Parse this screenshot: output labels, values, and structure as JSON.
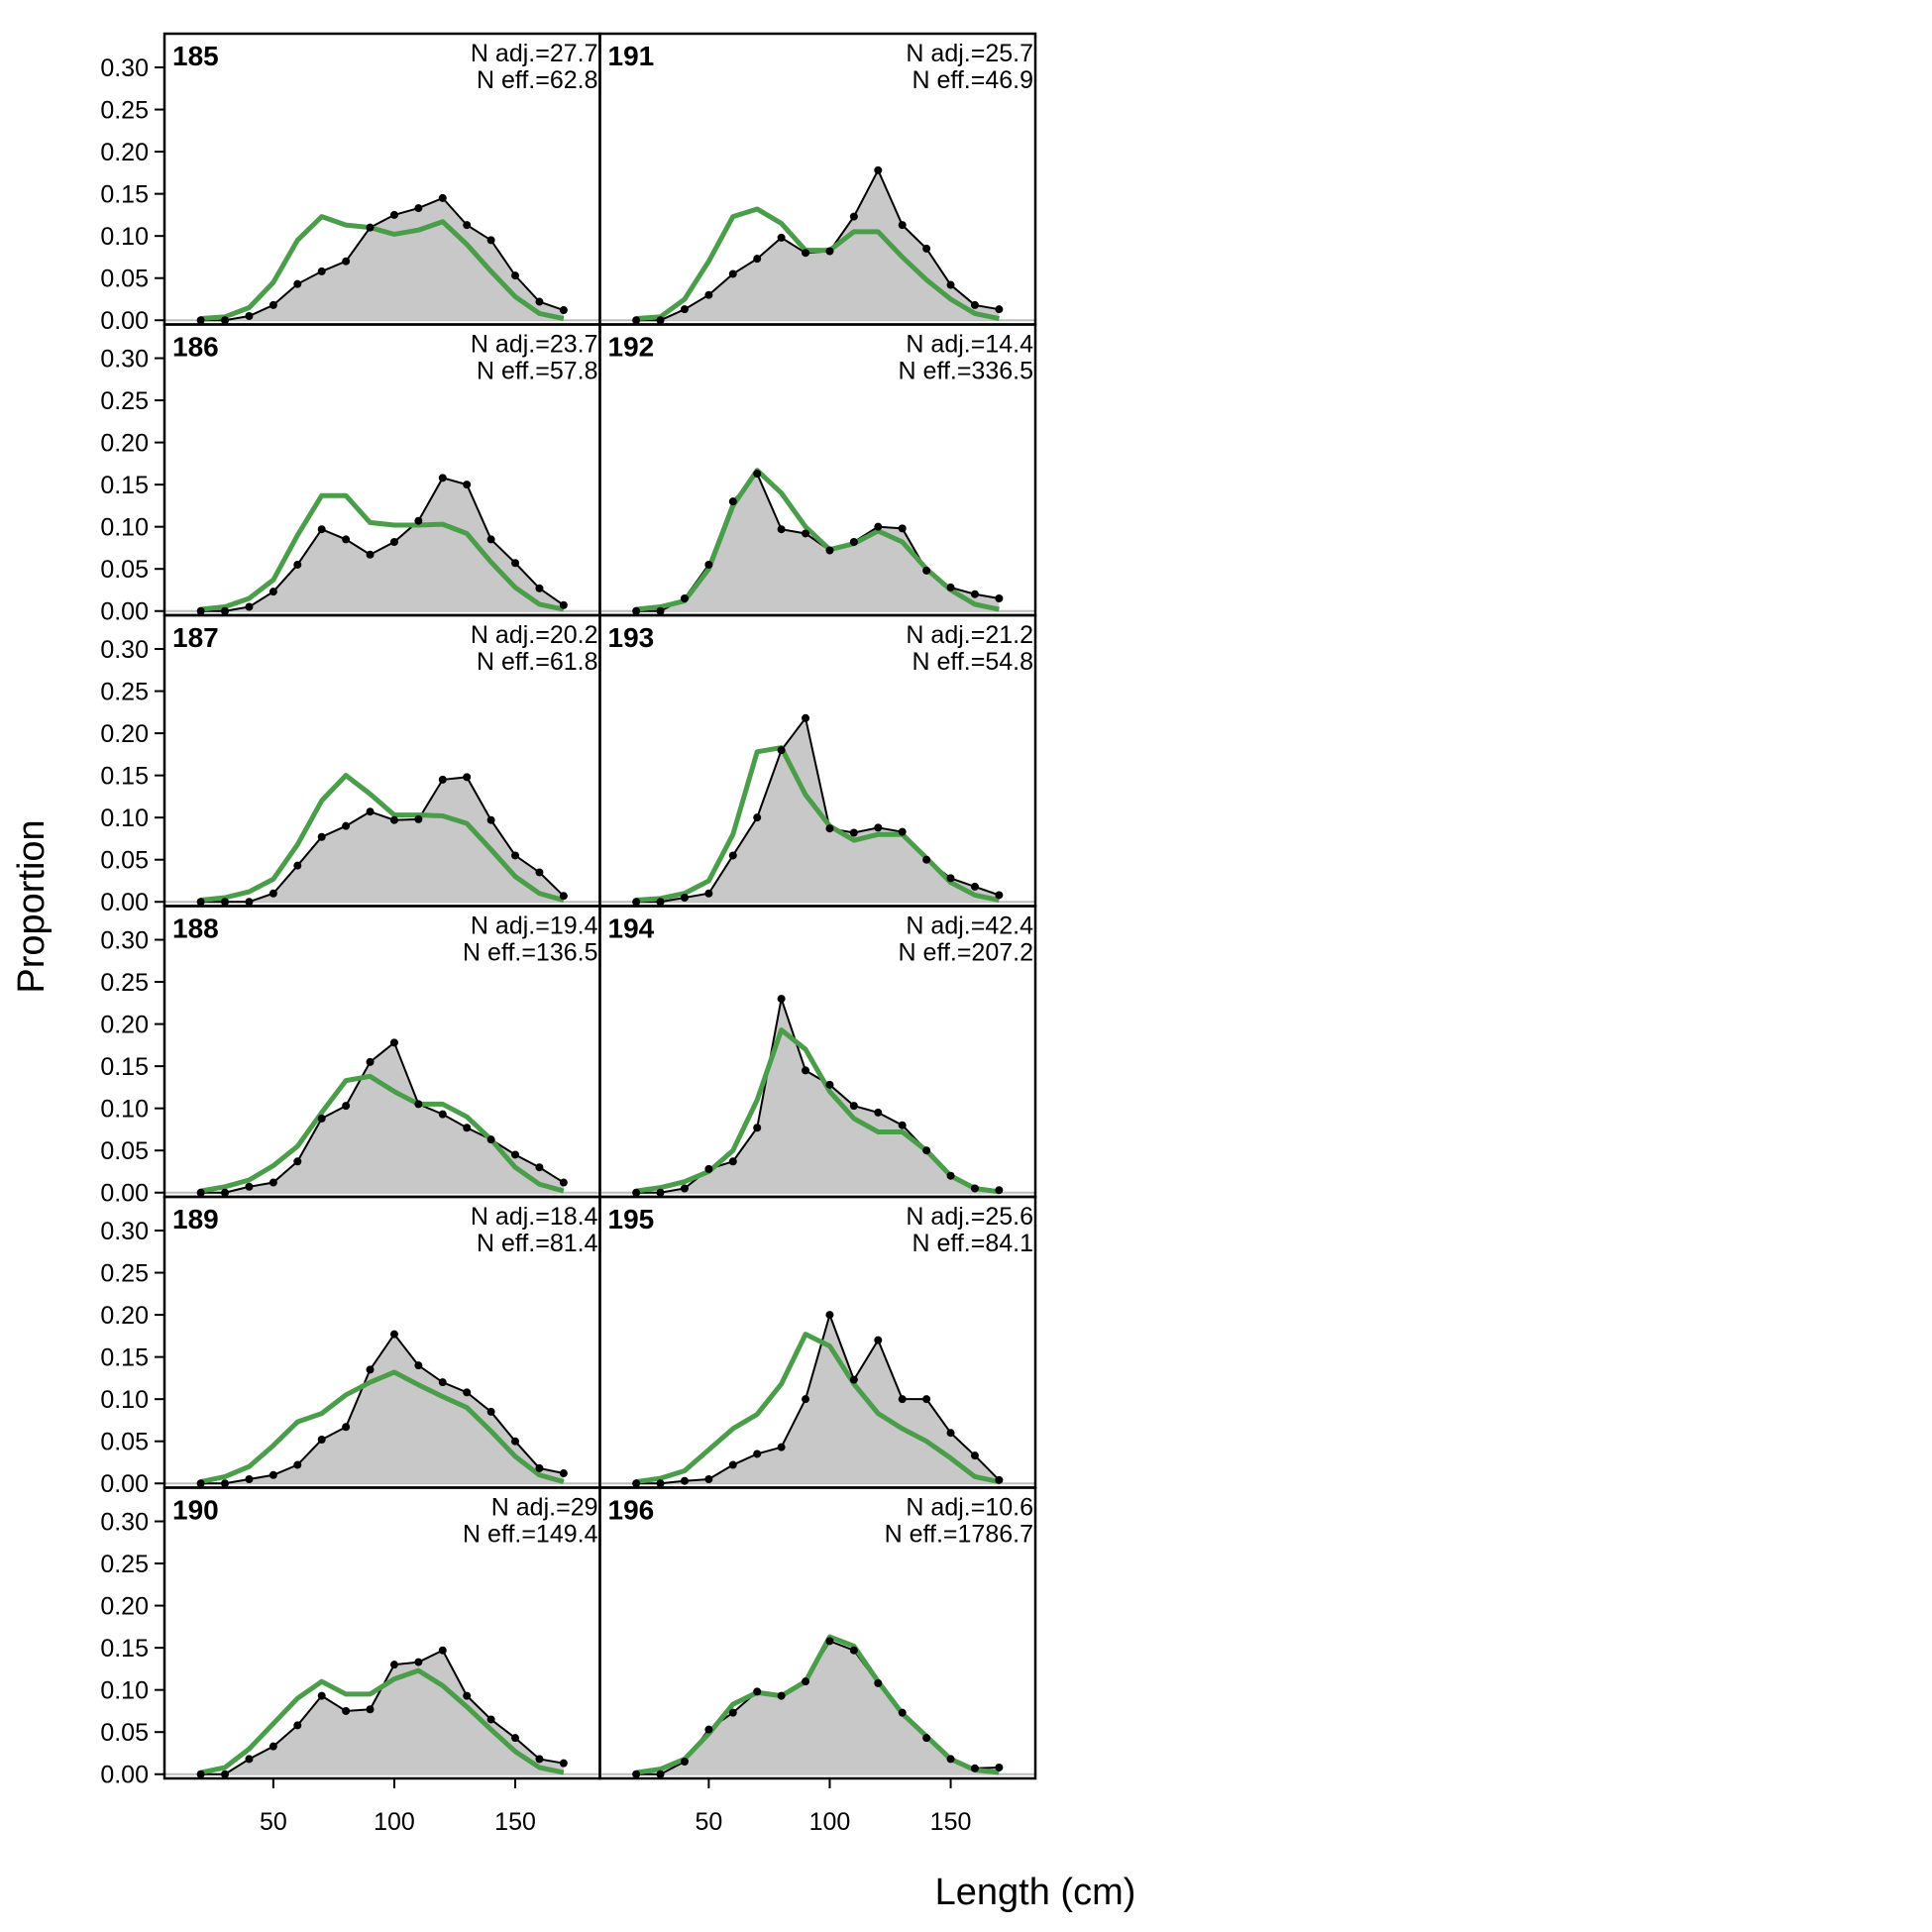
{
  "chart_data": {
    "type": "line",
    "xlabel": "Length (cm)",
    "ylabel": "Proportion",
    "x_ticks": [
      50,
      100,
      150
    ],
    "y_ticks": [
      "0.00",
      "0.05",
      "0.10",
      "0.15",
      "0.20",
      "0.25",
      "0.30"
    ],
    "xlim": [
      5,
      185
    ],
    "ylim": [
      -0.005,
      0.34
    ],
    "x": [
      20,
      30,
      40,
      50,
      60,
      70,
      80,
      90,
      100,
      110,
      120,
      130,
      140,
      150,
      160,
      170
    ],
    "colors": {
      "observed_fill": "#c8c8c8",
      "observed_line": "#000000",
      "expected_line": "#4a9e4a"
    },
    "panels": [
      {
        "label": "185",
        "n_adj": "N adj.=27.7",
        "n_eff": "N eff.=62.8",
        "observed": [
          0,
          0,
          0.005,
          0.018,
          0.043,
          0.058,
          0.07,
          0.11,
          0.125,
          0.133,
          0.145,
          0.113,
          0.095,
          0.053,
          0.022,
          0.012
        ],
        "expected": [
          0.002,
          0.004,
          0.015,
          0.045,
          0.095,
          0.123,
          0.113,
          0.11,
          0.102,
          0.107,
          0.117,
          0.09,
          0.058,
          0.028,
          0.008,
          0.002
        ]
      },
      {
        "label": "191",
        "n_adj": "N adj.=25.7",
        "n_eff": "N eff.=46.9",
        "observed": [
          0,
          0,
          0.013,
          0.03,
          0.055,
          0.073,
          0.098,
          0.08,
          0.082,
          0.123,
          0.178,
          0.113,
          0.085,
          0.042,
          0.018,
          0.013
        ],
        "expected": [
          0.002,
          0.004,
          0.025,
          0.07,
          0.123,
          0.132,
          0.115,
          0.083,
          0.083,
          0.105,
          0.105,
          0.075,
          0.048,
          0.025,
          0.008,
          0.002
        ]
      },
      {
        "label": "186",
        "n_adj": "N adj.=23.7",
        "n_eff": "N eff.=57.8",
        "observed": [
          0,
          0,
          0.005,
          0.023,
          0.055,
          0.097,
          0.085,
          0.067,
          0.082,
          0.107,
          0.158,
          0.15,
          0.085,
          0.057,
          0.027,
          0.007
        ],
        "expected": [
          0.002,
          0.005,
          0.015,
          0.037,
          0.09,
          0.137,
          0.137,
          0.105,
          0.102,
          0.102,
          0.103,
          0.092,
          0.058,
          0.028,
          0.008,
          0.002
        ]
      },
      {
        "label": "192",
        "n_adj": "N adj.=14.4",
        "n_eff": "N eff.=336.5",
        "observed": [
          0,
          0,
          0.015,
          0.055,
          0.13,
          0.163,
          0.097,
          0.092,
          0.072,
          0.082,
          0.1,
          0.098,
          0.048,
          0.028,
          0.02,
          0.015
        ],
        "expected": [
          0.002,
          0.005,
          0.012,
          0.05,
          0.125,
          0.167,
          0.14,
          0.1,
          0.073,
          0.08,
          0.095,
          0.082,
          0.05,
          0.025,
          0.008,
          0.002
        ]
      },
      {
        "label": "187",
        "n_adj": "N adj.=20.2",
        "n_eff": "N eff.=61.8",
        "observed": [
          0,
          0,
          0,
          0.01,
          0.043,
          0.077,
          0.09,
          0.107,
          0.097,
          0.098,
          0.145,
          0.148,
          0.097,
          0.055,
          0.035,
          0.007
        ],
        "expected": [
          0.002,
          0.005,
          0.012,
          0.027,
          0.068,
          0.12,
          0.15,
          0.128,
          0.103,
          0.103,
          0.102,
          0.093,
          0.062,
          0.03,
          0.01,
          0.002
        ]
      },
      {
        "label": "193",
        "n_adj": "N adj.=21.2",
        "n_eff": "N eff.=54.8",
        "observed": [
          0,
          0,
          0.005,
          0.01,
          0.055,
          0.1,
          0.18,
          0.218,
          0.087,
          0.082,
          0.088,
          0.083,
          0.05,
          0.028,
          0.018,
          0.008
        ],
        "expected": [
          0.002,
          0.004,
          0.01,
          0.025,
          0.08,
          0.178,
          0.183,
          0.127,
          0.09,
          0.073,
          0.08,
          0.08,
          0.052,
          0.023,
          0.008,
          0.002
        ]
      },
      {
        "label": "188",
        "n_adj": "N adj.=19.4",
        "n_eff": "N eff.=136.5",
        "observed": [
          0,
          0,
          0.007,
          0.012,
          0.037,
          0.088,
          0.103,
          0.155,
          0.178,
          0.105,
          0.093,
          0.077,
          0.063,
          0.045,
          0.03,
          0.012
        ],
        "expected": [
          0.002,
          0.007,
          0.015,
          0.032,
          0.055,
          0.095,
          0.133,
          0.138,
          0.12,
          0.105,
          0.105,
          0.09,
          0.063,
          0.03,
          0.01,
          0.002
        ]
      },
      {
        "label": "194",
        "n_adj": "N adj.=42.4",
        "n_eff": "N eff.=207.2",
        "observed": [
          0,
          0,
          0.005,
          0.028,
          0.037,
          0.077,
          0.23,
          0.145,
          0.128,
          0.103,
          0.095,
          0.08,
          0.05,
          0.02,
          0.005,
          0.003
        ],
        "expected": [
          0.002,
          0.006,
          0.013,
          0.025,
          0.05,
          0.11,
          0.193,
          0.17,
          0.12,
          0.088,
          0.072,
          0.072,
          0.05,
          0.02,
          0.005,
          0.001
        ]
      },
      {
        "label": "189",
        "n_adj": "N adj.=18.4",
        "n_eff": "N eff.=81.4",
        "observed": [
          0,
          0,
          0.005,
          0.01,
          0.022,
          0.052,
          0.067,
          0.135,
          0.177,
          0.14,
          0.12,
          0.108,
          0.085,
          0.05,
          0.018,
          0.012
        ],
        "expected": [
          0.002,
          0.008,
          0.02,
          0.045,
          0.073,
          0.083,
          0.105,
          0.12,
          0.132,
          0.117,
          0.103,
          0.09,
          0.062,
          0.032,
          0.01,
          0.002
        ]
      },
      {
        "label": "195",
        "n_adj": "N adj.=25.6",
        "n_eff": "N eff.=84.1",
        "observed": [
          0,
          0,
          0.003,
          0.005,
          0.022,
          0.035,
          0.043,
          0.1,
          0.2,
          0.123,
          0.17,
          0.1,
          0.1,
          0.06,
          0.033,
          0.004
        ],
        "expected": [
          0.002,
          0.006,
          0.015,
          0.04,
          0.065,
          0.082,
          0.118,
          0.177,
          0.163,
          0.118,
          0.083,
          0.065,
          0.05,
          0.03,
          0.008,
          0.002
        ]
      },
      {
        "label": "190",
        "n_adj": "N adj.=29",
        "n_eff": "N eff.=149.4",
        "observed": [
          0,
          0,
          0.018,
          0.033,
          0.058,
          0.093,
          0.075,
          0.077,
          0.13,
          0.133,
          0.147,
          0.093,
          0.065,
          0.043,
          0.018,
          0.013
        ],
        "expected": [
          0.002,
          0.008,
          0.03,
          0.06,
          0.09,
          0.11,
          0.095,
          0.095,
          0.113,
          0.123,
          0.105,
          0.08,
          0.053,
          0.027,
          0.008,
          0.002
        ]
      },
      {
        "label": "196",
        "n_adj": "N adj.=10.6",
        "n_eff": "N eff.=1786.7",
        "observed": [
          0,
          0,
          0.015,
          0.053,
          0.073,
          0.098,
          0.093,
          0.11,
          0.158,
          0.147,
          0.108,
          0.073,
          0.043,
          0.018,
          0.007,
          0.008
        ],
        "expected": [
          0.002,
          0.006,
          0.018,
          0.048,
          0.083,
          0.097,
          0.093,
          0.11,
          0.163,
          0.152,
          0.11,
          0.072,
          0.045,
          0.018,
          0.005,
          0.002
        ]
      }
    ]
  }
}
